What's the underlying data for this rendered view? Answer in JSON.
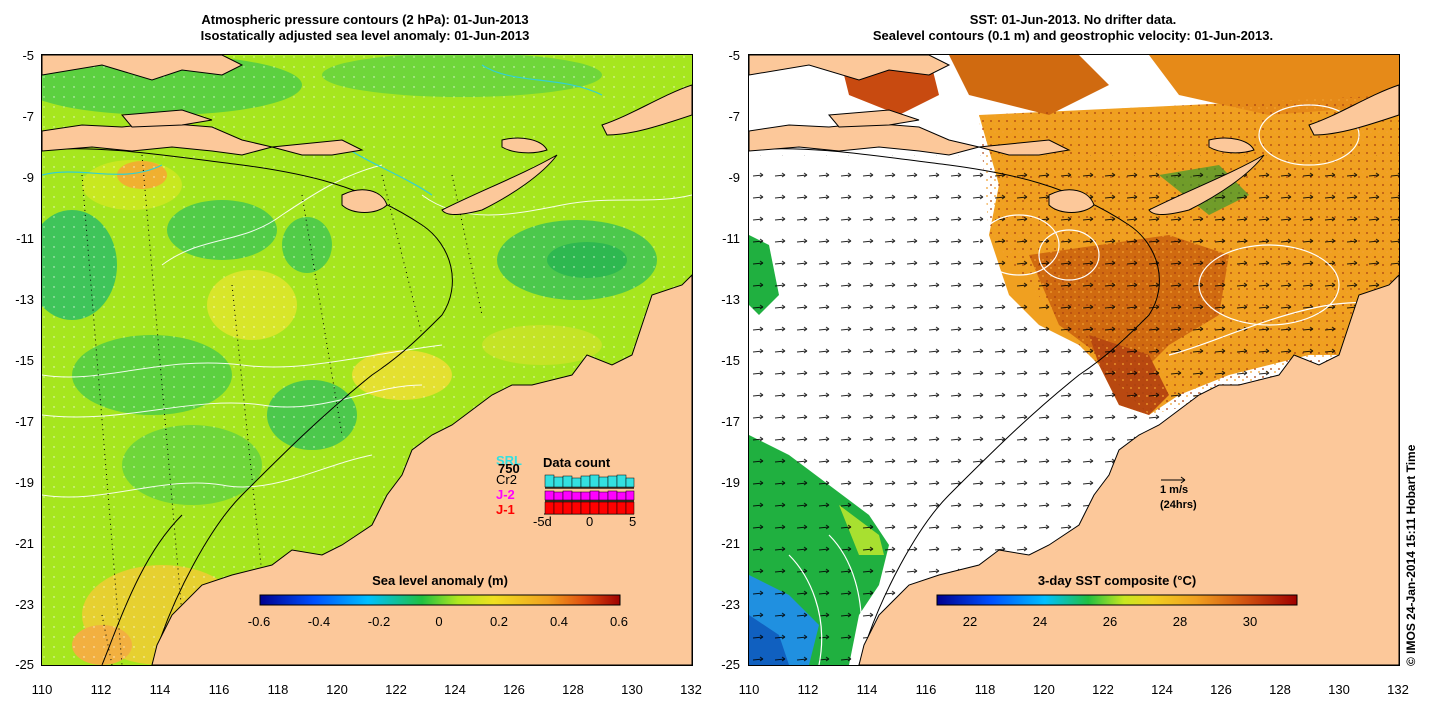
{
  "left_panel": {
    "title_line1": "Atmospheric pressure contours (2 hPa): 01-Jun-2013",
    "title_line2": "Isostatically adjusted sea level anomaly: 01-Jun-2013",
    "colorbar_title": "Sea level anomaly (m)",
    "colorbar_ticks": [
      "-0.6",
      "-0.4",
      "-0.2",
      "0",
      "0.2",
      "0.4",
      "0.6"
    ],
    "data_count": {
      "title": "Data count",
      "satellites": [
        "SRL",
        "750",
        "Cr2",
        "J-2",
        "J-1"
      ],
      "sat_colors": [
        "#33e0e0",
        "#000000",
        "#000000",
        "#ff00ff",
        "#ff0000"
      ],
      "axis_labels": [
        "-5d",
        "0",
        "5"
      ]
    }
  },
  "right_panel": {
    "title_line1": "SST: 01-Jun-2013. No drifter data.",
    "title_line2": "Sealevel contours (0.1 m) and geostrophic velocity: 01-Jun-2013.",
    "colorbar_title": "3-day SST composite (°C)",
    "colorbar_ticks": [
      "22",
      "24",
      "26",
      "28",
      "30"
    ],
    "velocity_key_line1": "1 m/s",
    "velocity_key_line2": "(24hrs)"
  },
  "y_tick_labels": [
    "-5",
    "-7",
    "-9",
    "-11",
    "-13",
    "-15",
    "-17",
    "-19",
    "-21",
    "-23",
    "-25"
  ],
  "x_tick_labels": [
    "110",
    "112",
    "114",
    "116",
    "118",
    "120",
    "122",
    "124",
    "126",
    "128",
    "130",
    "132"
  ],
  "credit": "© IMOS 24-Jan-2014 15:11 Hobart Time",
  "colors": {
    "land": "#fcc89a",
    "sla_base": "#a6e61e",
    "sst_warm": "#d96a10",
    "sst_cool": "#18b04a"
  },
  "extent": {
    "lon": [
      110,
      132
    ],
    "lat": [
      -25,
      -5
    ]
  }
}
